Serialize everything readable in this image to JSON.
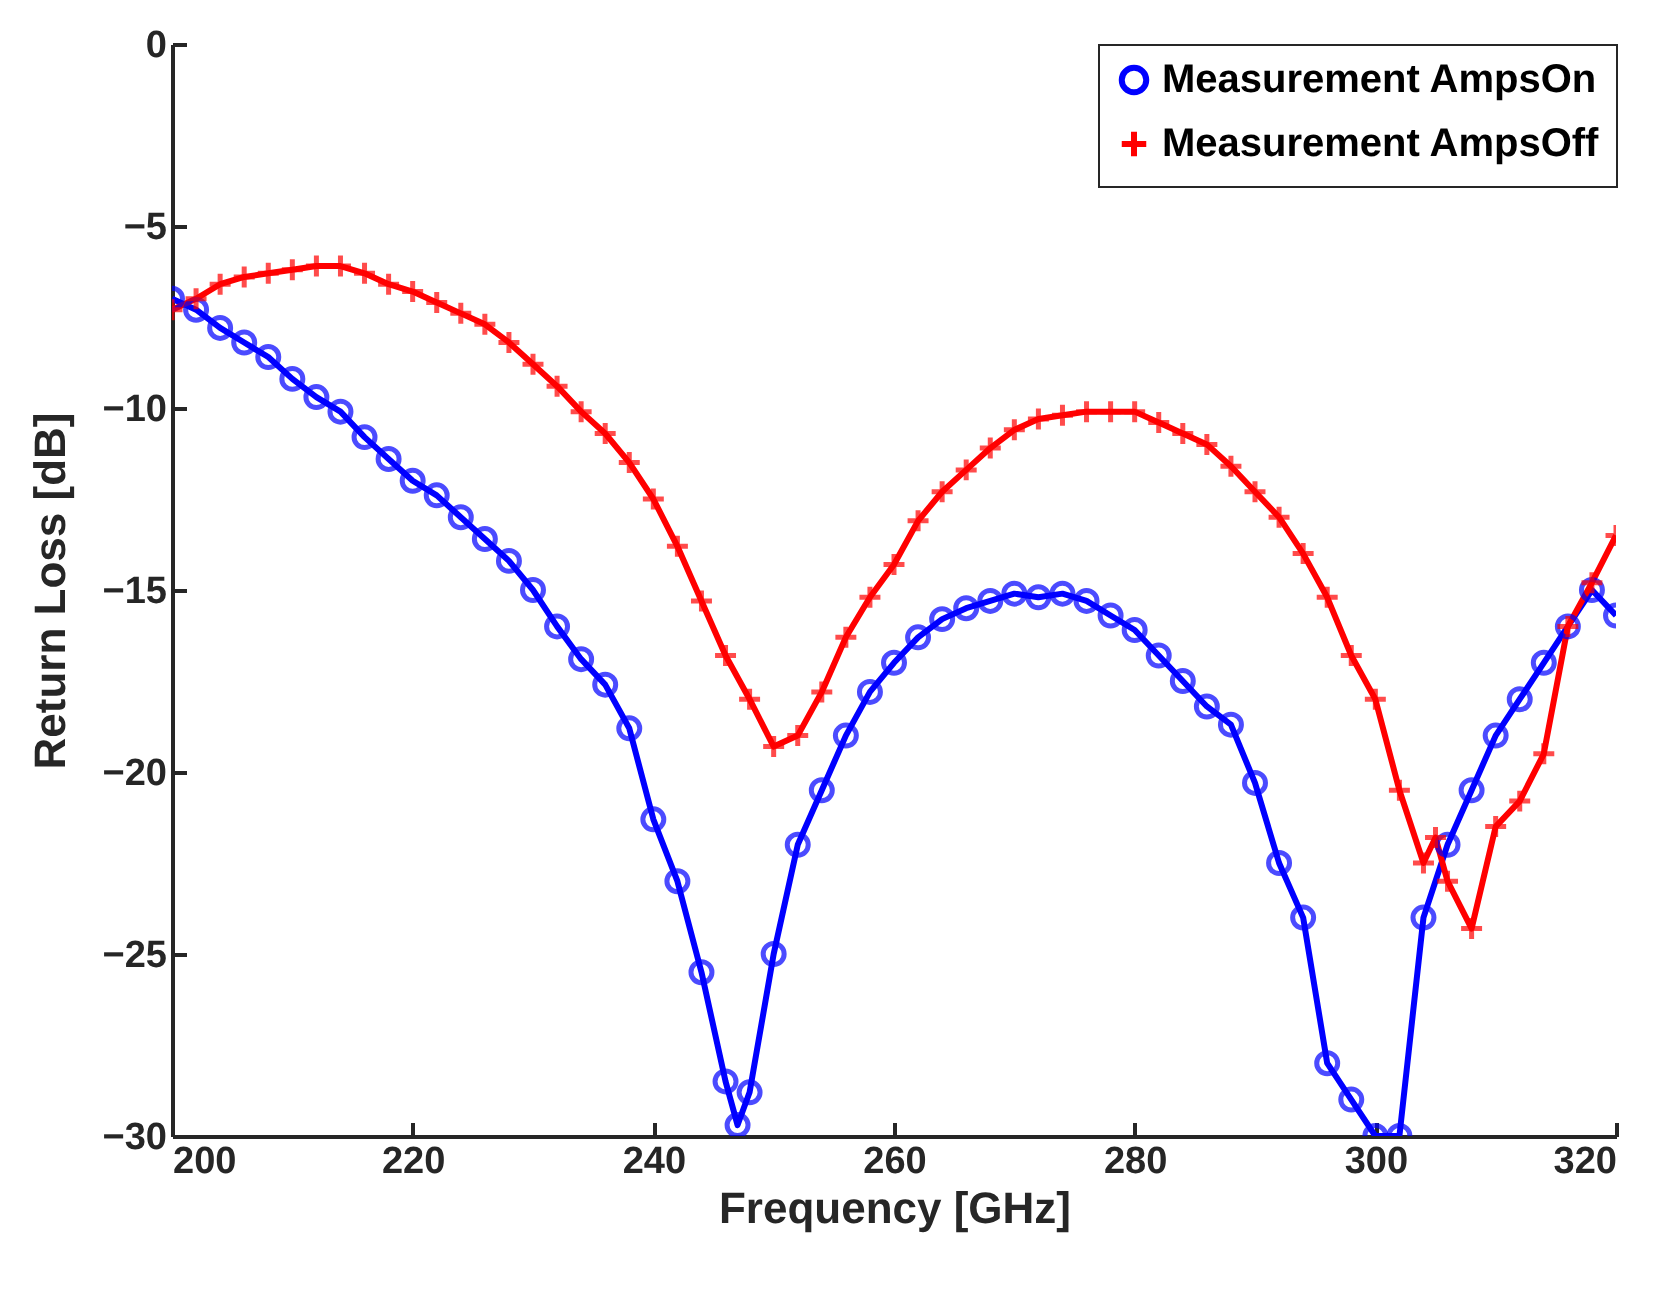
{
  "chart_data": {
    "type": "line",
    "xlabel": "Frequency [GHz]",
    "ylabel": "Return Loss [dB]",
    "xlim": [
      200,
      320
    ],
    "xticks": [
      200,
      220,
      240,
      260,
      280,
      300,
      320
    ],
    "ylim": [
      -30,
      0
    ],
    "yticks": [
      -30,
      -25,
      -20,
      -15,
      -10,
      -5,
      0
    ],
    "grid": false,
    "legend": "top right",
    "line_style": "solid",
    "series": [
      {
        "name": "Measurement AmpsOn",
        "color": "#0000ff",
        "marker": "circle",
        "x": [
          200,
          202,
          204,
          206,
          208,
          210,
          212,
          214,
          216,
          218,
          220,
          222,
          224,
          226,
          228,
          230,
          232,
          234,
          236,
          238,
          240,
          242,
          244,
          246,
          247,
          248,
          250,
          252,
          254,
          256,
          258,
          260,
          262,
          264,
          266,
          268,
          270,
          272,
          274,
          276,
          278,
          280,
          282,
          284,
          286,
          288,
          290,
          292,
          294,
          296,
          298,
          300,
          302,
          304,
          306,
          308,
          310,
          312,
          314,
          316,
          318,
          320
        ],
        "values": [
          -7,
          -7.3,
          -7.8,
          -8.2,
          -8.6,
          -9.2,
          -9.7,
          -10.1,
          -10.8,
          -11.4,
          -12,
          -12.4,
          -13,
          -13.6,
          -14.2,
          -15,
          -16,
          -16.9,
          -17.6,
          -18.8,
          -21.3,
          -23,
          -25.5,
          -28.5,
          -29.7,
          -28.8,
          -25,
          -22,
          -20.5,
          -19,
          -17.8,
          -17,
          -16.3,
          -15.8,
          -15.5,
          -15.3,
          -15.1,
          -15.2,
          -15.1,
          -15.3,
          -15.7,
          -16.1,
          -16.8,
          -17.5,
          -18.2,
          -18.7,
          -20.3,
          -22.5,
          -24,
          -28,
          -29,
          -30,
          -30,
          -24,
          -22,
          -20.5,
          -19,
          -18,
          -17,
          -16,
          -15,
          -15.7
        ]
      },
      {
        "name": "Measurement AmpsOff",
        "color": "#ff0000",
        "marker": "cross",
        "x": [
          200,
          202,
          204,
          206,
          208,
          210,
          212,
          214,
          216,
          218,
          220,
          222,
          224,
          226,
          228,
          230,
          232,
          234,
          236,
          238,
          240,
          242,
          244,
          246,
          248,
          250,
          252,
          254,
          256,
          258,
          260,
          262,
          264,
          266,
          268,
          270,
          272,
          274,
          276,
          278,
          280,
          282,
          284,
          286,
          288,
          290,
          292,
          294,
          296,
          298,
          300,
          302,
          304,
          305,
          306,
          308,
          310,
          312,
          314,
          316,
          318,
          320
        ],
        "values": [
          -7.3,
          -7,
          -6.6,
          -6.4,
          -6.3,
          -6.2,
          -6.1,
          -6.1,
          -6.3,
          -6.6,
          -6.8,
          -7.1,
          -7.4,
          -7.7,
          -8.2,
          -8.8,
          -9.4,
          -10.1,
          -10.7,
          -11.5,
          -12.5,
          -13.8,
          -15.3,
          -16.8,
          -18,
          -19.3,
          -19,
          -17.8,
          -16.3,
          -15.2,
          -14.3,
          -13.1,
          -12.3,
          -11.7,
          -11.1,
          -10.6,
          -10.3,
          -10.2,
          -10.1,
          -10.1,
          -10.1,
          -10.4,
          -10.7,
          -11,
          -11.6,
          -12.3,
          -13,
          -14,
          -15.2,
          -16.8,
          -18,
          -20.5,
          -22.5,
          -21.8,
          -23,
          -24.3,
          -21.5,
          -20.8,
          -19.5,
          -16,
          -14.8,
          -13.5
        ]
      }
    ]
  }
}
